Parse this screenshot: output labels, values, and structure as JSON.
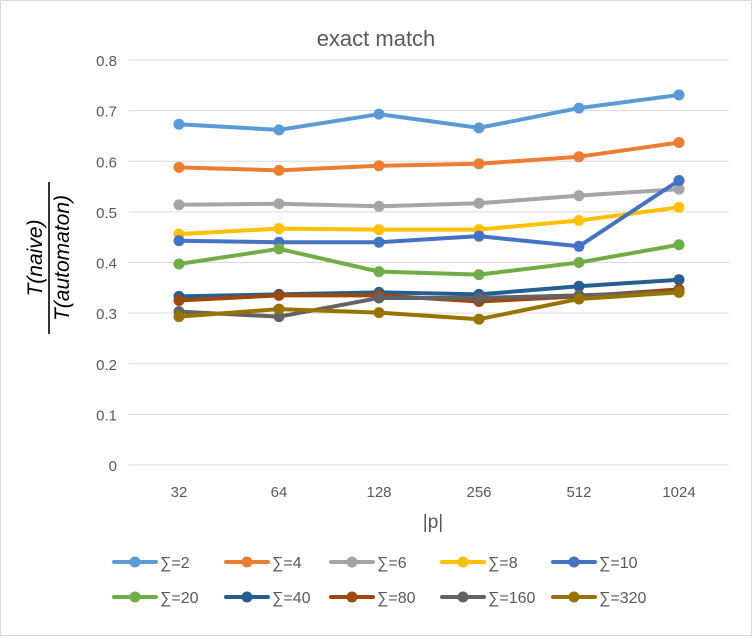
{
  "chart_data": {
    "type": "line",
    "title": "exact match",
    "xlabel": "|p|",
    "ylabel": {
      "numerator": "T(naive)",
      "denominator": "T(automaton)"
    },
    "categories": [
      "32",
      "64",
      "128",
      "256",
      "512",
      "1024"
    ],
    "ylim": [
      0,
      0.8
    ],
    "yticks": [
      "0",
      "0.1",
      "0.2",
      "0.3",
      "0.4",
      "0.5",
      "0.6",
      "0.7",
      "0.8"
    ],
    "grid": true,
    "legend_position": "bottom",
    "series": [
      {
        "name": "∑=2",
        "color": "#5b9bd5",
        "values": [
          0.673,
          0.662,
          0.693,
          0.666,
          0.705,
          0.731
        ]
      },
      {
        "name": "∑=4",
        "color": "#ed7d31",
        "values": [
          0.588,
          0.582,
          0.591,
          0.595,
          0.609,
          0.637
        ]
      },
      {
        "name": "∑=6",
        "color": "#a5a5a5",
        "values": [
          0.514,
          0.516,
          0.511,
          0.517,
          0.532,
          0.545
        ]
      },
      {
        "name": "∑=8",
        "color": "#ffc000",
        "values": [
          0.456,
          0.467,
          0.465,
          0.465,
          0.483,
          0.509
        ]
      },
      {
        "name": "∑=10",
        "color": "#4472c4",
        "values": [
          0.443,
          0.44,
          0.44,
          0.452,
          0.432,
          0.562
        ]
      },
      {
        "name": "∑=20",
        "color": "#70ad47",
        "values": [
          0.397,
          0.427,
          0.382,
          0.376,
          0.4,
          0.435
        ]
      },
      {
        "name": "∑=40",
        "color": "#255e91",
        "values": [
          0.333,
          0.337,
          0.341,
          0.337,
          0.353,
          0.366
        ]
      },
      {
        "name": "∑=80",
        "color": "#9e480e",
        "values": [
          0.325,
          0.335,
          0.335,
          0.323,
          0.333,
          0.347
        ]
      },
      {
        "name": "∑=160",
        "color": "#636363",
        "values": [
          0.303,
          0.293,
          0.33,
          0.33,
          0.335,
          0.342
        ]
      },
      {
        "name": "∑=320",
        "color": "#997300",
        "values": [
          0.293,
          0.308,
          0.301,
          0.288,
          0.328,
          0.341
        ]
      }
    ]
  }
}
